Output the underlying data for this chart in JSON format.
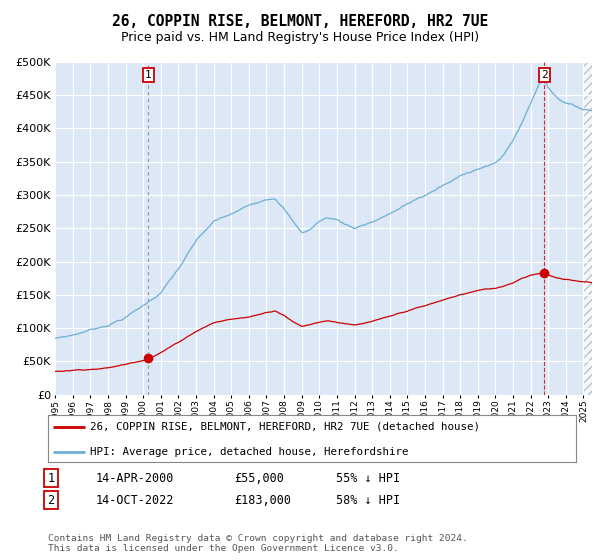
{
  "title": "26, COPPIN RISE, BELMONT, HEREFORD, HR2 7UE",
  "subtitle": "Price paid vs. HM Land Registry's House Price Index (HPI)",
  "plot_bg_color": "#dce8f5",
  "hpi_color": "#6baed6",
  "price_color": "#cc0000",
  "sale1_date": 2000.28,
  "sale1_price": 55000,
  "sale1_label": "1",
  "sale2_date": 2022.79,
  "sale2_price": 183000,
  "sale2_label": "2",
  "ylim": [
    0,
    500000
  ],
  "xlim": [
    1995.0,
    2025.5
  ],
  "legend_house": "26, COPPIN RISE, BELMONT, HEREFORD, HR2 7UE (detached house)",
  "legend_hpi": "HPI: Average price, detached house, Herefordshire",
  "annotation1_date": "14-APR-2000",
  "annotation1_price": "£55,000",
  "annotation1_pct": "55% ↓ HPI",
  "annotation2_date": "14-OCT-2022",
  "annotation2_price": "£183,000",
  "annotation2_pct": "58% ↓ HPI",
  "footer": "Contains HM Land Registry data © Crown copyright and database right 2024.\nThis data is licensed under the Open Government Licence v3.0."
}
